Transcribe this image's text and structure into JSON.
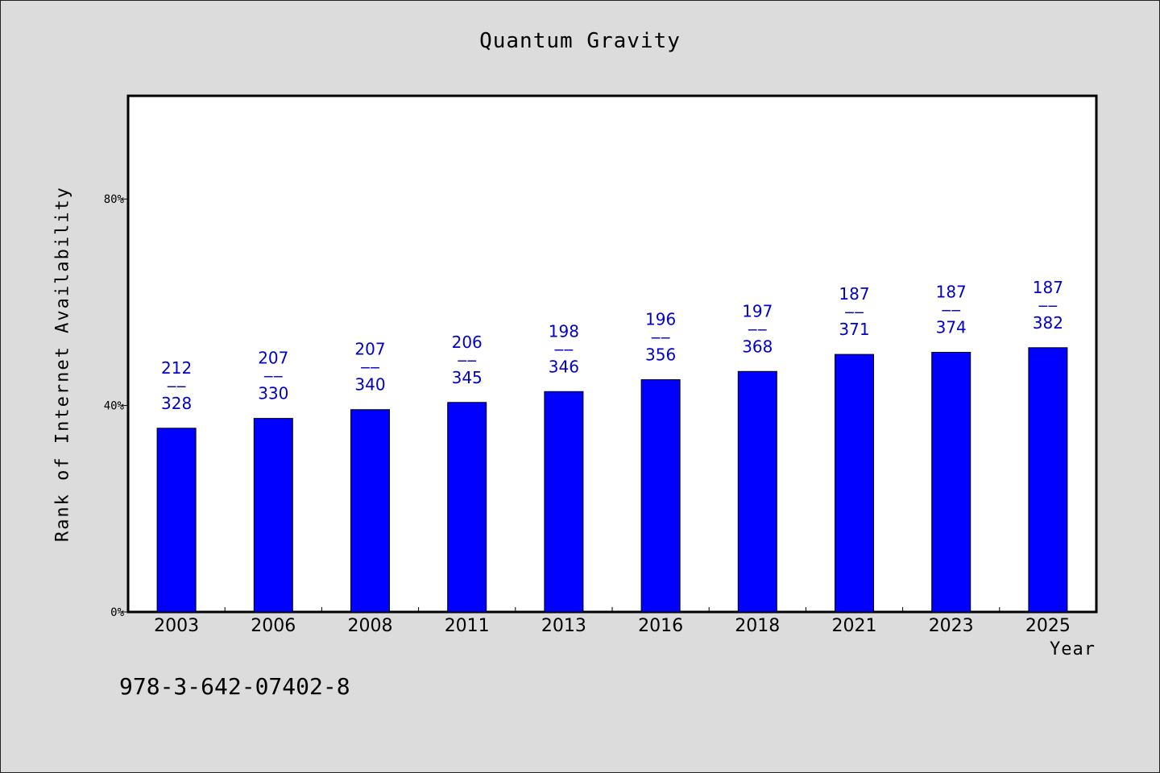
{
  "chart_data": {
    "type": "bar",
    "title": "Quantum Gravity",
    "xlabel": "Year",
    "ylabel": "Rank of Internet Availability",
    "categories": [
      "2003",
      "2006",
      "2008",
      "2011",
      "2013",
      "2016",
      "2018",
      "2021",
      "2023",
      "2025"
    ],
    "values": [
      35.6,
      37.5,
      39.2,
      40.6,
      42.7,
      45.0,
      46.6,
      49.9,
      50.3,
      51.2
    ],
    "value_format": "percent",
    "ylim": [
      0,
      100
    ],
    "yticks": [
      {
        "value": 0,
        "label": "0%"
      },
      {
        "value": 40,
        "label": "40%"
      },
      {
        "value": 80,
        "label": "80%"
      }
    ],
    "data_labels": [
      {
        "top": "212",
        "sep": "——",
        "bottom": "328"
      },
      {
        "top": "207",
        "sep": "——",
        "bottom": "330"
      },
      {
        "top": "207",
        "sep": "——",
        "bottom": "340"
      },
      {
        "top": "206",
        "sep": "——",
        "bottom": "345"
      },
      {
        "top": "198",
        "sep": "——",
        "bottom": "346"
      },
      {
        "top": "196",
        "sep": "——",
        "bottom": "356"
      },
      {
        "top": "197",
        "sep": "——",
        "bottom": "368"
      },
      {
        "top": "187",
        "sep": "——",
        "bottom": "371"
      },
      {
        "top": "187",
        "sep": "——",
        "bottom": "374"
      },
      {
        "top": "187",
        "sep": "——",
        "bottom": "382"
      }
    ],
    "grid": false,
    "legend": "none",
    "colors": {
      "bar": "#0000ff",
      "label": "#0000cc",
      "background": "#dcdcdc",
      "plot": "#ffffff"
    }
  },
  "footnote": "978-3-642-07402-8"
}
